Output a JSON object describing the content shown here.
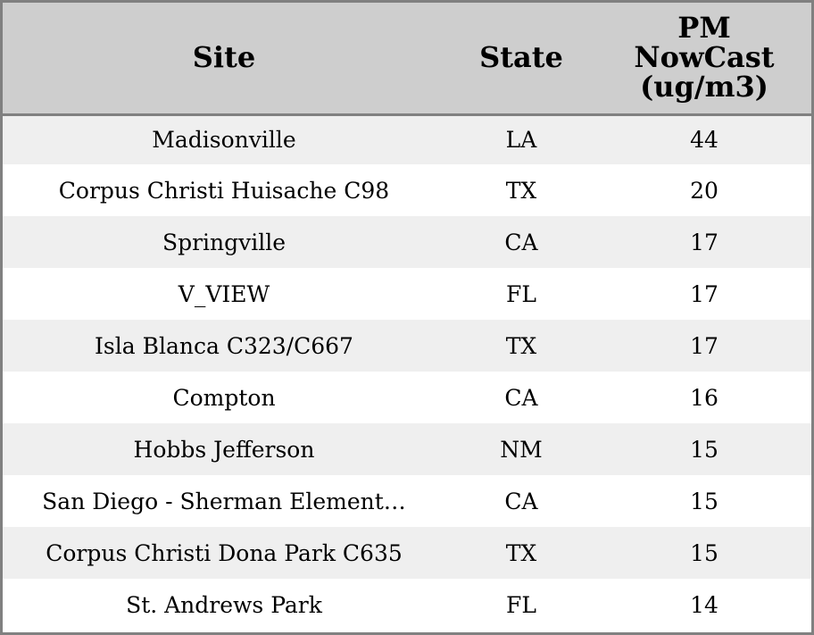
{
  "chart_data": {
    "type": "table",
    "columns": [
      "Site",
      "State",
      "PM NowCast (ug/m3)"
    ],
    "rows": [
      {
        "site": "Madisonville",
        "state": "LA",
        "pm": 44
      },
      {
        "site": "Corpus Christi Huisache C98",
        "state": "TX",
        "pm": 20
      },
      {
        "site": "Springville",
        "state": "CA",
        "pm": 17
      },
      {
        "site": "V_VIEW",
        "state": "FL",
        "pm": 17
      },
      {
        "site": "Isla Blanca C323/C667",
        "state": "TX",
        "pm": 17
      },
      {
        "site": "Compton",
        "state": "CA",
        "pm": 16
      },
      {
        "site": "Hobbs Jefferson",
        "state": "NM",
        "pm": 15
      },
      {
        "site": "San Diego - Sherman Element…",
        "state": "CA",
        "pm": 15
      },
      {
        "site": "Corpus Christi Dona Park C635",
        "state": "TX",
        "pm": 15
      },
      {
        "site": "St. Andrews Park",
        "state": "FL",
        "pm": 14
      }
    ]
  },
  "colors": {
    "header_bg": "#cecece",
    "row_alt_bg": "#efefef",
    "row_bg": "#ffffff",
    "border": "#808080"
  }
}
